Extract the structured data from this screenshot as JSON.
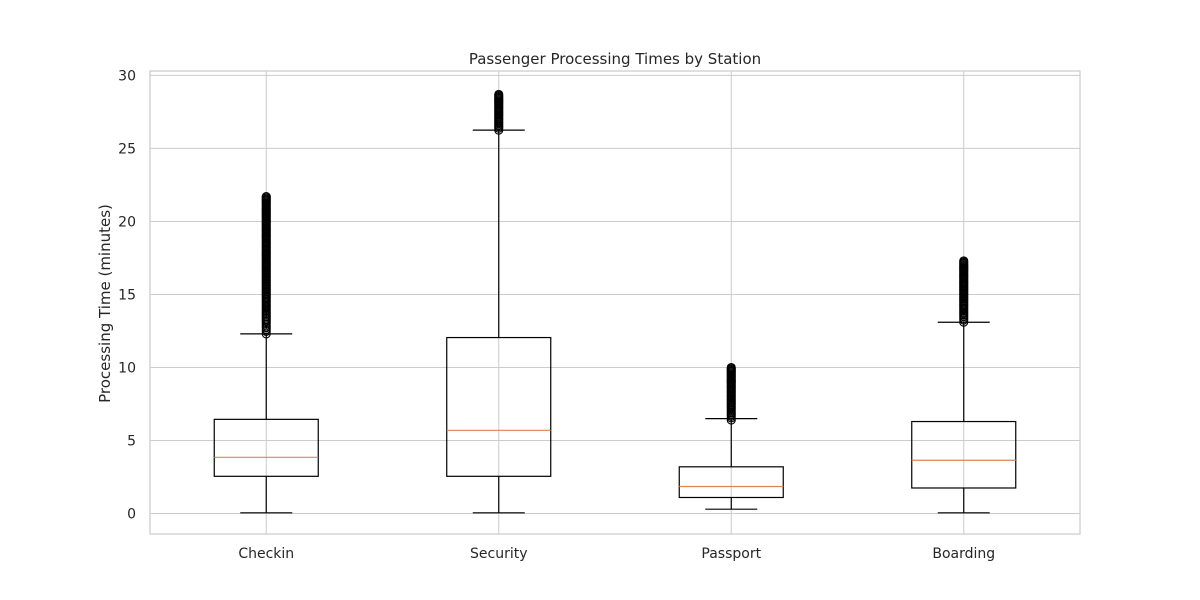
{
  "chart_data": {
    "type": "boxplot",
    "title": "Passenger Processing Times by Station",
    "xlabel": "",
    "ylabel": "Processing Time (minutes)",
    "ylim": [
      -1.4,
      30.3
    ],
    "yticks": [
      0,
      5,
      10,
      15,
      20,
      25,
      30
    ],
    "grid": true,
    "categories": [
      "Checkin",
      "Security",
      "Passport",
      "Boarding"
    ],
    "boxes": [
      {
        "category": "Checkin",
        "whisker_low": 0.05,
        "q1": 2.55,
        "median": 3.85,
        "q3": 6.45,
        "whisker_high": 12.3,
        "outlier_min": 12.3,
        "outlier_max": 21.7
      },
      {
        "category": "Security",
        "whisker_low": 0.05,
        "q1": 2.55,
        "median": 5.7,
        "q3": 12.05,
        "whisker_high": 26.25,
        "outlier_min": 26.25,
        "outlier_max": 28.7
      },
      {
        "category": "Passport",
        "whisker_low": 0.3,
        "q1": 1.1,
        "median": 1.85,
        "q3": 3.2,
        "whisker_high": 6.5,
        "outlier_min": 6.4,
        "outlier_max": 10.0
      },
      {
        "category": "Boarding",
        "whisker_low": 0.05,
        "q1": 1.75,
        "median": 3.65,
        "q3": 6.3,
        "whisker_high": 13.1,
        "outlier_min": 13.1,
        "outlier_max": 17.3
      }
    ],
    "colors": {
      "box": "#000000",
      "median": "#dd8452",
      "grid": "#cccccc",
      "frame": "#cccccc",
      "text": "#262626"
    }
  }
}
